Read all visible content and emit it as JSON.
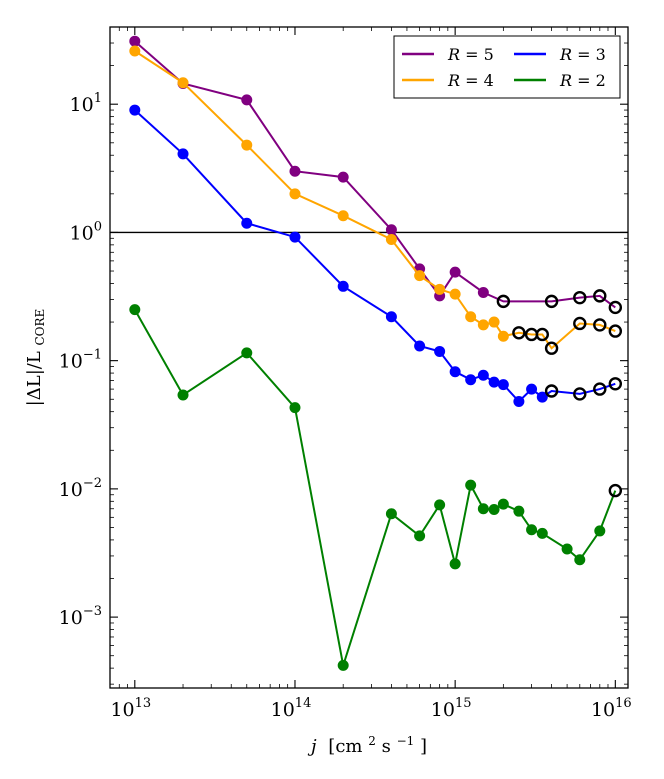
{
  "chart_data": {
    "type": "line",
    "title": "",
    "xscale": "log",
    "yscale": "log",
    "xlim": [
      7000000000000.0,
      1.2e+16
    ],
    "ylim": [
      0.00028,
      40
    ],
    "xlabel": {
      "var": "j",
      "unit_pre": "[cm",
      "unit_sup1": "2",
      "unit_mid": " s",
      "unit_sup2": "−1",
      "unit_post": "]"
    },
    "ylabel": {
      "numerator": "|ΔL|/L",
      "subscript": "CORE"
    },
    "x_ticks": [
      {
        "value": 10000000000000.0,
        "base": "10",
        "exp": "13"
      },
      {
        "value": 100000000000000.0,
        "base": "10",
        "exp": "14"
      },
      {
        "value": 1000000000000000.0,
        "base": "10",
        "exp": "15"
      },
      {
        "value": 1e+16,
        "base": "10",
        "exp": "16"
      }
    ],
    "y_ticks": [
      {
        "value": 0.001,
        "base": "10",
        "exp": "−3"
      },
      {
        "value": 0.01,
        "base": "10",
        "exp": "−2"
      },
      {
        "value": 0.1,
        "base": "10",
        "exp": "−1"
      },
      {
        "value": 1,
        "base": "10",
        "exp": "0"
      },
      {
        "value": 10,
        "base": "10",
        "exp": "1"
      }
    ],
    "reference_line": {
      "y": 1,
      "color": "#000000"
    },
    "legend": {
      "position": "top-right"
    },
    "series": [
      {
        "name": "R = 5",
        "var": "R",
        "eq": " = 5",
        "color": "#800080",
        "x": [
          10000000000000.0,
          20000000000000.0,
          50000000000000.0,
          100000000000000.0,
          200000000000000.0,
          400000000000000.0,
          600000000000000.0,
          800000000000000.0,
          1000000000000000.0,
          1500000000000000.0,
          2000000000000000.0,
          4000000000000000.0,
          6000000000000000.0,
          8000000000000000.0,
          1e+16
        ],
        "y": [
          31,
          14.5,
          10.8,
          3.0,
          2.7,
          1.05,
          0.52,
          0.32,
          0.49,
          0.34,
          0.29,
          0.29,
          0.31,
          0.32,
          0.26
        ],
        "hollow": [
          false,
          false,
          false,
          false,
          false,
          false,
          false,
          false,
          false,
          false,
          true,
          true,
          true,
          true,
          true
        ]
      },
      {
        "name": "R = 4",
        "var": "R",
        "eq": " = 4",
        "color": "#ffa500",
        "x": [
          10000000000000.0,
          20000000000000.0,
          50000000000000.0,
          100000000000000.0,
          200000000000000.0,
          400000000000000.0,
          600000000000000.0,
          800000000000000.0,
          1000000000000000.0,
          1250000000000000.0,
          1500000000000000.0,
          1750000000000000.0,
          2000000000000000.0,
          2500000000000000.0,
          3000000000000000.0,
          3500000000000000.0,
          4000000000000000.0,
          6000000000000000.0,
          8000000000000000.0,
          1e+16
        ],
        "y": [
          26,
          14.7,
          4.8,
          2.0,
          1.35,
          0.88,
          0.46,
          0.36,
          0.33,
          0.22,
          0.19,
          0.2,
          0.155,
          0.165,
          0.16,
          0.16,
          0.125,
          0.195,
          0.19,
          0.17
        ],
        "hollow": [
          false,
          false,
          false,
          false,
          false,
          false,
          false,
          false,
          false,
          false,
          false,
          false,
          false,
          true,
          true,
          true,
          true,
          true,
          true,
          true
        ]
      },
      {
        "name": "R = 3",
        "var": "R",
        "eq": " = 3",
        "color": "#0000ff",
        "x": [
          10000000000000.0,
          20000000000000.0,
          50000000000000.0,
          100000000000000.0,
          200000000000000.0,
          400000000000000.0,
          600000000000000.0,
          800000000000000.0,
          1000000000000000.0,
          1250000000000000.0,
          1500000000000000.0,
          1750000000000000.0,
          2000000000000000.0,
          2500000000000000.0,
          3000000000000000.0,
          3500000000000000.0,
          4000000000000000.0,
          6000000000000000.0,
          8000000000000000.0,
          1e+16
        ],
        "y": [
          9.0,
          4.1,
          1.18,
          0.92,
          0.38,
          0.22,
          0.13,
          0.118,
          0.082,
          0.071,
          0.077,
          0.068,
          0.065,
          0.048,
          0.06,
          0.052,
          0.058,
          0.055,
          0.06,
          0.066
        ],
        "hollow": [
          false,
          false,
          false,
          false,
          false,
          false,
          false,
          false,
          false,
          false,
          false,
          false,
          false,
          false,
          false,
          false,
          true,
          true,
          true,
          true
        ]
      },
      {
        "name": "R = 2",
        "var": "R",
        "eq": " = 2",
        "color": "#008000",
        "x": [
          10000000000000.0,
          20000000000000.0,
          50000000000000.0,
          100000000000000.0,
          200000000000000.0,
          400000000000000.0,
          600000000000000.0,
          800000000000000.0,
          1000000000000000.0,
          1250000000000000.0,
          1500000000000000.0,
          1750000000000000.0,
          2000000000000000.0,
          2500000000000000.0,
          3000000000000000.0,
          3500000000000000.0,
          5000000000000000.0,
          6000000000000000.0,
          8000000000000000.0,
          1e+16
        ],
        "y": [
          0.25,
          0.054,
          0.115,
          0.043,
          0.00042,
          0.0064,
          0.0043,
          0.0075,
          0.0026,
          0.0107,
          0.007,
          0.0069,
          0.0076,
          0.0067,
          0.0048,
          0.0045,
          0.0034,
          0.0028,
          0.0047,
          0.0097
        ],
        "hollow": [
          false,
          false,
          false,
          false,
          false,
          false,
          false,
          false,
          false,
          false,
          false,
          false,
          false,
          false,
          false,
          false,
          false,
          false,
          false,
          true
        ]
      }
    ]
  }
}
